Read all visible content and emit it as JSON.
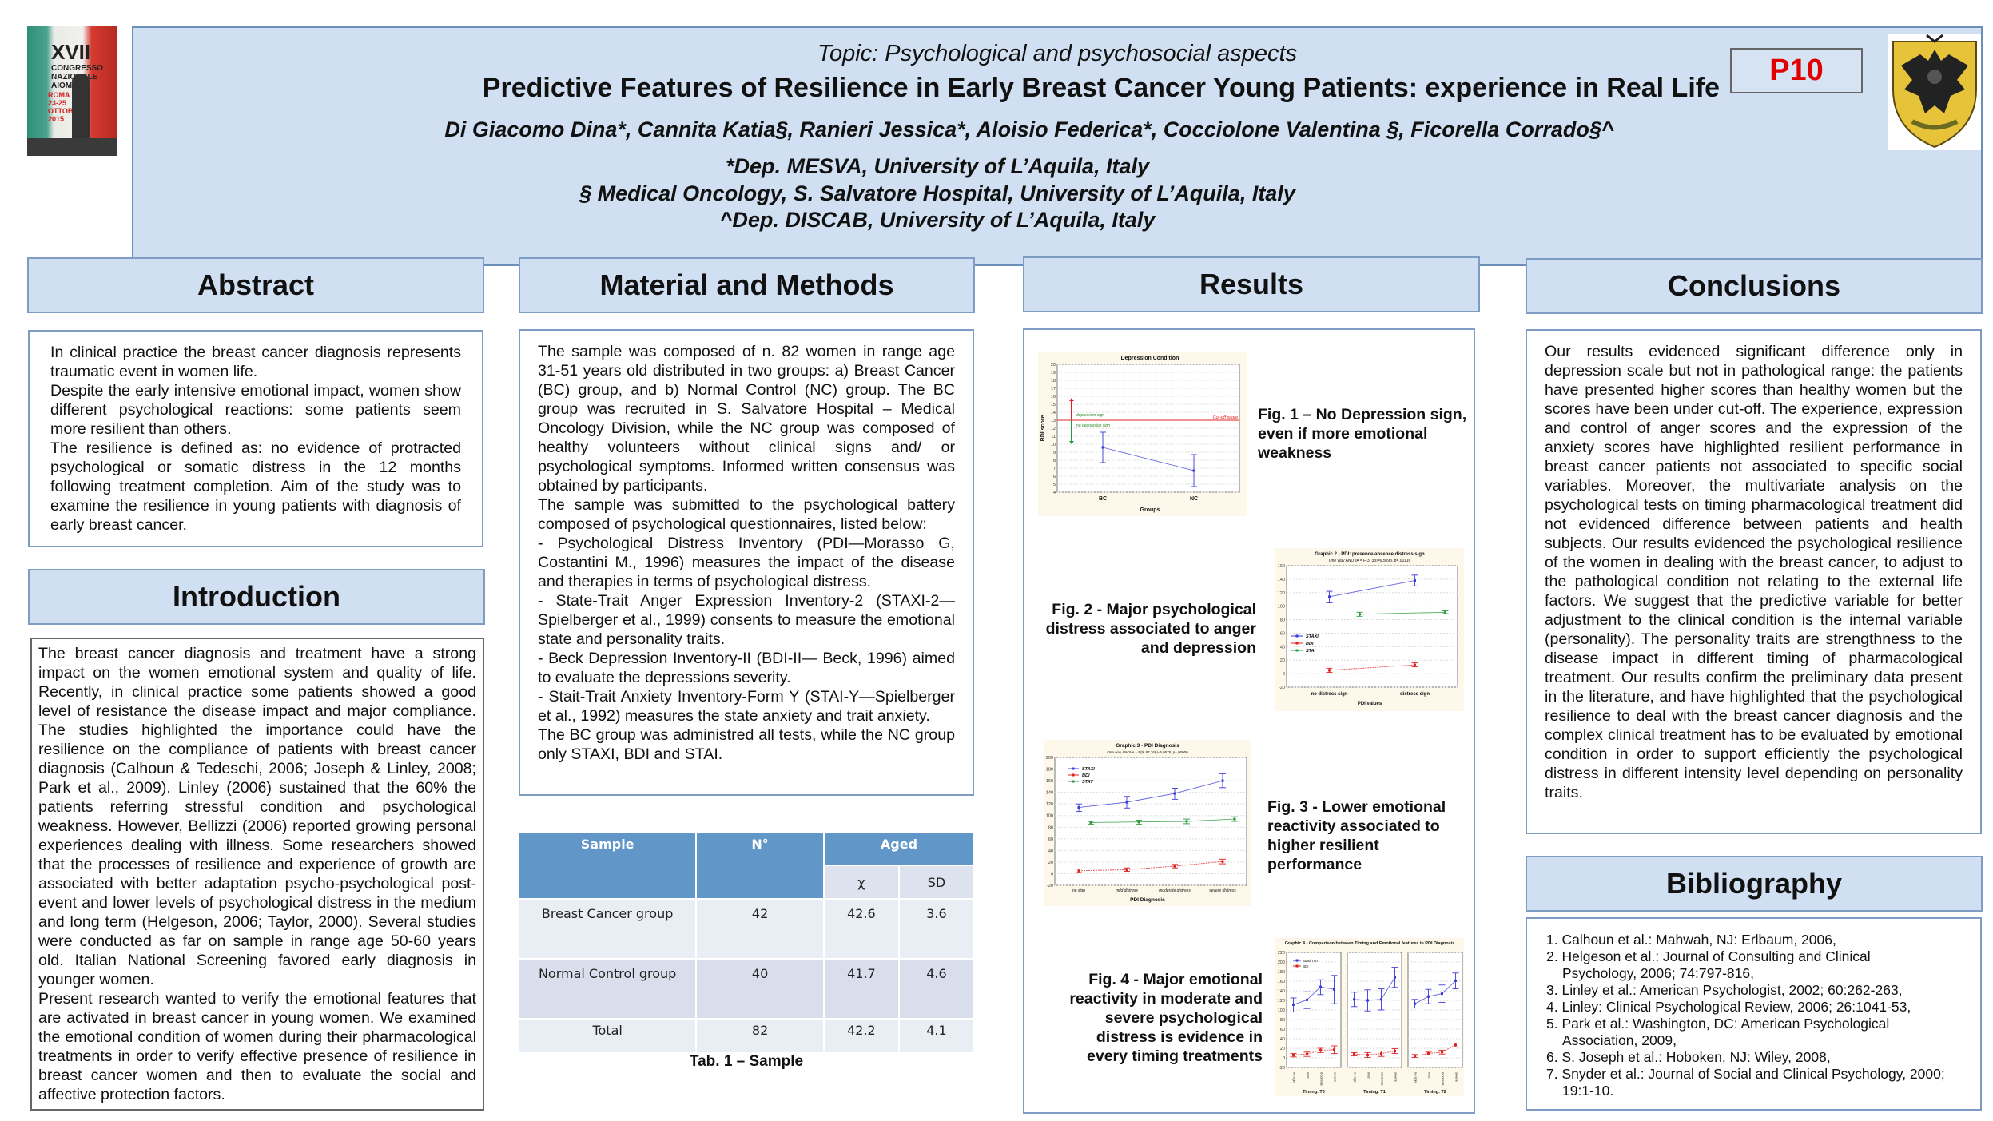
{
  "header": {
    "topic": "Topic: Psychological and psychosocial aspects",
    "title": "Predictive Features of Resilience in Early Breast Cancer Young Patients:  experience in Real Life",
    "authors": "Di Giacomo Dina*, Cannita Katia§, Ranieri Jessica*, Aloisio Federica*, Cocciolone Valentina §, Ficorella Corrado§^",
    "affiliations": [
      "*Dep. MESVA, University of L’Aquila, Italy",
      "§ Medical Oncology, S. Salvatore Hospital, University of L’Aquila, Italy",
      "^Dep. DISCAB, University of L’Aquila, Italy"
    ],
    "poster_code": "P10",
    "left_logo": {
      "line1": "XVII",
      "line2": "CONGRESSO NAZIONALE AIOM",
      "line3": "ROMA 23-25 OTTOBRE 2015"
    },
    "colors": {
      "header_bg": "#d0e0f2",
      "border": "#6b8fb8",
      "poster_code": "#e00000"
    }
  },
  "sections": {
    "abstract": {
      "title": "Abstract",
      "paragraphs": [
        "In clinical practice the breast cancer diagnosis represents traumatic event in women life.",
        "Despite the early intensive emotional impact, women show different psychological reactions: some patients seem more resilient than others.",
        "The resilience is defined as: no evidence of protracted psychological or somatic distress in the 12 months following treatment completion. Aim of the study was to examine the resilience in young patients with diagnosis of early breast cancer."
      ]
    },
    "introduction": {
      "title": "Introduction",
      "paragraphs": [
        "The breast cancer diagnosis and treatment have a strong impact on the women emotional system and quality of life. Recently, in clinical practice some patients showed a good level of resistance the disease impact and major compliance. The studies highlighted the importance could have the resilience on the compliance of patients with breast cancer diagnosis (Calhoun & Tedeschi, 2006; Joseph & Linley, 2008; Park et al., 2009). Linley (2006) sustained that the 60% the patients referring stressful condition and psychological weakness. However, Bellizzi (2006) reported growing personal experiences dealing with illness. Some researchers showed that the processes of resilience and experience of growth are associated with better adaptation psycho-psychological post-event and lower levels of psychological distress in the medium and long term (Helgeson, 2006; Taylor, 2000). Several studies were conducted as far on sample in range age 50-60 years old. Italian National Screening favored early diagnosis in younger women.",
        "Present research wanted to verify the emotional features that are activated in breast cancer in young women. We examined the emotional condition of women during their pharmacological treatments in order to verify effective presence of resilience in breast cancer women and then to evaluate the social and affective protection factors."
      ]
    },
    "methods": {
      "title": "Material and Methods",
      "paragraphs": [
        "The sample was composed of n. 82 women in range age 31-51 years old distributed in two groups: a) Breast Cancer (BC) group, and b) Normal Control (NC) group. The BC group was recruited in S. Salvatore Hospital – Medical Oncology Division, while the NC group was composed of healthy volunteers without clinical signs and/ or psychological symptoms. Informed written consensus was obtained by participants.",
        "The sample was submitted to the psychological battery composed of psychological questionnaires, listed below:",
        "- Psychological Distress Inventory (PDI—Morasso G, Costantini M., 1996) measures the impact of the disease and therapies in terms of psychological distress.",
        "- State-Trait Anger Expression Inventory-2 (STAXI-2—Spielberger et al., 1999) consents to measure the emotional state and personality traits.",
        "- Beck Depression Inventory-II (BDI-II— Beck, 1996) aimed to evaluate the depressions severity.",
        "- Stait-Trait Anxiety Inventory-Form Y (STAI-Y—Spielberger et al., 1992) measures the state anxiety and trait anxiety.",
        "The BC group was administred all tests, while the NC group only STAXI, BDI and STAI."
      ],
      "table": {
        "headers": {
          "sample": "Sample",
          "n": "N°",
          "aged": "Aged",
          "mean": "χ",
          "sd": "SD"
        },
        "rows": [
          {
            "sample": "Breast Cancer group",
            "n": "42",
            "mean": "42.6",
            "sd": "3.6"
          },
          {
            "sample": "Normal Control group",
            "n": "40",
            "mean": "41.7",
            "sd": "4.6"
          },
          {
            "sample": "Total",
            "n": "82",
            "mean": "42.2",
            "sd": "4.1"
          }
        ],
        "caption": "Tab. 1 – Sample"
      }
    },
    "results": {
      "title": "Results",
      "figures": [
        {
          "caption": "Fig. 1 – No Depression sign, even if more emotional weakness"
        },
        {
          "caption": "Fig. 2 - Major psychological distress associated to anger and depression"
        },
        {
          "caption": "Fig. 3 - Lower emotional reactivity associated to higher resilient performance"
        },
        {
          "caption": "Fig. 4 - Major emotional reactivity in moderate and severe psychological distress is evidence in every timing treatments"
        }
      ]
    },
    "conclusions": {
      "title": "Conclusions",
      "text": "Our results evidenced significant difference only in depression scale but not in pathological range: the patients have presented higher scores than healthy women but the scores have been under cut-off. The experience, expression and control of anger scores and the expression of the anxiety scores have highlighted resilient performance in breast cancer patients not associated to specific social variables. Moreover, the multivariate analysis on the psychological tests on timing pharmacological treatment did not evidenced difference between patients and health subjects. Our results evidenced the psychological resilience of the women in dealing with the breast cancer, to adjust to the pathological condition not relating to the external life factors. We suggest that the predictive variable for better adjustment to the clinical condition is the internal variable (personality). The personality traits are strengthness to the disease impact in different timing of pharmacological treatment. Our results confirm the preliminary data present in the literature, and have highlighted that the psychological resilience to deal with the breast cancer diagnosis and the complex clinical treatment has to be evaluated by emotional condition in order to support efficiently the psychological distress in different intensity level depending on personality traits."
    },
    "bibliography": {
      "title": "Bibliography",
      "items": [
        {
          "first": "1. Calhoun et al.: Mahwah, NJ: Erlbaum, 2006,",
          "cont": ""
        },
        {
          "first": "2. Helgeson et al.: Journal of Consulting and Clinical",
          "cont": "Psychology, 2006; 74:797-816,"
        },
        {
          "first": "3. Linley et al.: American Psychologist, 2002; 60:262-263,",
          "cont": ""
        },
        {
          "first": "4. Linley: Clinical Psychological Review, 2006; 26:1041-53,",
          "cont": ""
        },
        {
          "first": "5. Park et al.: Washington, DC: American Psychological",
          "cont": "Association, 2009,"
        },
        {
          "first": "6. S. Joseph et al.: Hoboken, NJ: Wiley, 2008,",
          "cont": ""
        },
        {
          "first": "7. Snyder et al.: Journal of Social and Clinical Psychology, 2000;",
          "cont": "19:1-10."
        }
      ]
    }
  },
  "chart_data": [
    {
      "id": "fig1",
      "type": "line",
      "title": "Depression Condition",
      "xlabel": "Groups",
      "ylabel": "BDI score",
      "categories": [
        "BC",
        "NC"
      ],
      "ylim": [
        4,
        20
      ],
      "yticks": [
        4,
        5,
        6,
        7,
        8,
        9,
        10,
        11,
        12,
        13,
        14,
        15,
        16,
        17,
        18,
        19,
        20
      ],
      "series": [
        {
          "name": "BDI",
          "values": [
            9.6,
            6.7
          ],
          "err_low": [
            7.7,
            4.7
          ],
          "err_high": [
            11.5,
            8.7
          ],
          "color": "#3a3ad8"
        }
      ],
      "cutoff": {
        "value": 13,
        "label": "Cut-off score",
        "color": "#e02020"
      },
      "annotations": [
        {
          "text": "depression sign",
          "color": "#2a8a2a"
        },
        {
          "text": "no depression sign",
          "color": "#2a8a2a"
        }
      ],
      "grid": true
    },
    {
      "id": "fig2",
      "type": "line",
      "title": "Graphic 2 - PDI: presence/absence distress sign",
      "subtitle": "One way ANOVA = F(3, 38)=6,5093, p=,00116",
      "xlabel": "PDI values",
      "ylabel": "",
      "categories": [
        "no distress sign",
        "distress sign"
      ],
      "ylim": [
        -20,
        160
      ],
      "yticks": [
        -20,
        0,
        20,
        40,
        60,
        80,
        100,
        120,
        140,
        160
      ],
      "series": [
        {
          "name": "STAXI",
          "values": [
            114,
            138
          ],
          "err_low": [
            105,
            130
          ],
          "err_high": [
            122,
            146
          ],
          "color": "#3a3ad8"
        },
        {
          "name": "BDI",
          "values": [
            5,
            13
          ],
          "err_low": [
            2,
            10
          ],
          "err_high": [
            8,
            16
          ],
          "color": "#e02020"
        },
        {
          "name": "STAI",
          "values": [
            88,
            91
          ],
          "err_low": [
            85,
            89
          ],
          "err_high": [
            91,
            93
          ],
          "color": "#2a9a3a"
        }
      ],
      "legend": "left",
      "grid": true
    },
    {
      "id": "fig3",
      "type": "line",
      "title": "Graphic 3 - PDI Diagnosis",
      "subtitle": "One way ANOVA = F(9, 87,766)=5,0578, p=,00000",
      "xlabel": "PDI Diagnosis",
      "ylabel": "",
      "categories": [
        "no sign",
        "mild distress",
        "moderate distress",
        "severe distress"
      ],
      "ylim": [
        -20,
        200
      ],
      "yticks": [
        -20,
        0,
        20,
        40,
        60,
        80,
        100,
        120,
        140,
        160,
        180,
        200
      ],
      "series": [
        {
          "name": "STAXI",
          "values": [
            114,
            123,
            138,
            160
          ],
          "err_low": [
            107,
            113,
            128,
            148
          ],
          "err_high": [
            120,
            133,
            147,
            172
          ],
          "color": "#3a3ad8"
        },
        {
          "name": "BDI",
          "values": [
            5,
            7,
            13,
            21
          ],
          "err_low": [
            2,
            4,
            10,
            17
          ],
          "err_high": [
            8,
            10,
            16,
            25
          ],
          "color": "#e02020"
        },
        {
          "name": "STAY",
          "values": [
            88,
            89,
            90,
            94
          ],
          "err_low": [
            85,
            85,
            86,
            90
          ],
          "err_high": [
            90,
            92,
            94,
            98
          ],
          "color": "#2a9a3a"
        }
      ],
      "legend": "top-left",
      "grid": true
    },
    {
      "id": "fig4",
      "type": "line",
      "title": "Graphic 4 - Comparison between Timing and Emotional features in PDI Diagnosis",
      "ylim": [
        -20,
        220
      ],
      "yticks": [
        -20,
        0,
        20,
        40,
        60,
        80,
        100,
        120,
        140,
        160,
        180,
        200,
        220
      ],
      "categories": [
        "no sign",
        "mild",
        "moderate",
        "severe"
      ],
      "legend": "top-left",
      "panels": [
        {
          "label": "Timing: T0",
          "series": [
            {
              "name": "Staxi TOT",
              "values": [
                111,
                121,
                148,
                143
              ],
              "err_low": [
                96,
                103,
                132,
                113
              ],
              "err_high": [
                125,
                138,
                163,
                172
              ],
              "color": "#3a3ad8"
            },
            {
              "name": "BDI",
              "values": [
                6,
                8,
                16,
                17
              ],
              "err_low": [
                2,
                3,
                11,
                9
              ],
              "err_high": [
                9,
                12,
                20,
                25
              ],
              "color": "#e02020"
            }
          ]
        },
        {
          "label": "Timing: T1",
          "series": [
            {
              "name": "Staxi TOT",
              "values": [
                122,
                120,
                122,
                168
              ],
              "err_low": [
                107,
                98,
                100,
                147
              ],
              "err_high": [
                137,
                142,
                144,
                189
              ],
              "color": "#3a3ad8"
            },
            {
              "name": "BDI",
              "values": [
                8,
                6,
                9,
                14
              ],
              "err_low": [
                4,
                1,
                3,
                9
              ],
              "err_high": [
                11,
                11,
                14,
                19
              ],
              "color": "#e02020"
            }
          ]
        },
        {
          "label": "Timing: T2",
          "series": [
            {
              "name": "Staxi TOT",
              "values": [
                113,
                128,
                134,
                161
              ],
              "err_low": [
                104,
                113,
                116,
                144
              ],
              "err_high": [
                122,
                143,
                152,
                177
              ],
              "color": "#3a3ad8"
            },
            {
              "name": "BDI",
              "values": [
                4,
                9,
                12,
                27
              ],
              "err_low": [
                1,
                6,
                8,
                23
              ],
              "err_high": [
                7,
                12,
                16,
                31
              ],
              "color": "#e02020"
            }
          ]
        }
      ],
      "grid": true
    }
  ]
}
